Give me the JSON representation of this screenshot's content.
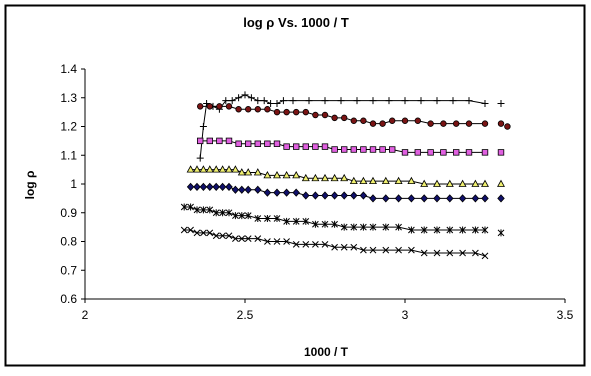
{
  "chart_data": {
    "type": "scatter",
    "title": "log ρ  Vs. 1000 / T",
    "xlabel": "1000 / T",
    "ylabel": "log ρ",
    "xlim": [
      2,
      3.5
    ],
    "ylim": [
      0.6,
      1.4
    ],
    "xticks": [
      "2",
      "2.5",
      "3",
      "3.5"
    ],
    "yticks": [
      "0.6",
      "0.7",
      "0.8",
      "0.9",
      "1",
      "1.1",
      "1.2",
      "1.3",
      "1.4"
    ],
    "grid": false,
    "legend": "none",
    "series": [
      {
        "marker": "plus",
        "color": "#000000",
        "fill": "none",
        "x": [
          2.36,
          2.37,
          2.38,
          2.4,
          2.42,
          2.44,
          2.46,
          2.48,
          2.5,
          2.52,
          2.54,
          2.56,
          2.58,
          2.6,
          2.62,
          2.65,
          2.7,
          2.75,
          2.8,
          2.85,
          2.9,
          2.95,
          3.0,
          3.05,
          3.1,
          3.15,
          3.2,
          3.25
        ],
        "y": [
          1.09,
          1.2,
          1.28,
          1.27,
          1.26,
          1.29,
          1.29,
          1.3,
          1.31,
          1.3,
          1.29,
          1.29,
          1.28,
          1.28,
          1.29,
          1.29,
          1.29,
          1.29,
          1.29,
          1.29,
          1.29,
          1.29,
          1.29,
          1.29,
          1.29,
          1.29,
          1.29,
          1.28
        ],
        "outlier": {
          "x": 3.3,
          "y": 1.28
        }
      },
      {
        "marker": "circle",
        "color": "#000000",
        "fill": "#7a1414",
        "x": [
          2.36,
          2.39,
          2.42,
          2.45,
          2.48,
          2.51,
          2.54,
          2.57,
          2.6,
          2.63,
          2.66,
          2.69,
          2.72,
          2.75,
          2.78,
          2.81,
          2.84,
          2.87,
          2.9,
          2.93,
          2.96,
          3.0,
          3.04,
          3.08,
          3.12,
          3.16,
          3.2,
          3.25
        ],
        "y": [
          1.27,
          1.27,
          1.27,
          1.27,
          1.26,
          1.26,
          1.26,
          1.26,
          1.25,
          1.25,
          1.25,
          1.25,
          1.24,
          1.24,
          1.23,
          1.23,
          1.22,
          1.22,
          1.21,
          1.21,
          1.22,
          1.22,
          1.22,
          1.21,
          1.21,
          1.21,
          1.21,
          1.21
        ],
        "outlier": {
          "x": 3.3,
          "y": 1.21
        },
        "extra": {
          "x": 3.32,
          "y": 1.2
        }
      },
      {
        "marker": "square",
        "color": "#000000",
        "fill": "#e060e0",
        "x": [
          2.36,
          2.39,
          2.42,
          2.45,
          2.48,
          2.51,
          2.54,
          2.57,
          2.6,
          2.63,
          2.66,
          2.69,
          2.72,
          2.75,
          2.78,
          2.81,
          2.84,
          2.87,
          2.9,
          2.93,
          2.96,
          3.0,
          3.04,
          3.08,
          3.12,
          3.16,
          3.2,
          3.25
        ],
        "y": [
          1.15,
          1.15,
          1.15,
          1.15,
          1.14,
          1.14,
          1.14,
          1.14,
          1.14,
          1.13,
          1.13,
          1.13,
          1.13,
          1.13,
          1.12,
          1.12,
          1.12,
          1.12,
          1.12,
          1.12,
          1.12,
          1.11,
          1.11,
          1.11,
          1.11,
          1.11,
          1.11,
          1.11
        ],
        "outlier": {
          "x": 3.3,
          "y": 1.11
        }
      },
      {
        "marker": "triangle",
        "color": "#000000",
        "fill": "#f0f070",
        "x": [
          2.33,
          2.35,
          2.37,
          2.39,
          2.41,
          2.43,
          2.45,
          2.47,
          2.49,
          2.51,
          2.54,
          2.57,
          2.6,
          2.63,
          2.66,
          2.69,
          2.72,
          2.75,
          2.78,
          2.81,
          2.84,
          2.87,
          2.9,
          2.94,
          2.98,
          3.02,
          3.06,
          3.1,
          3.14,
          3.18,
          3.22,
          3.25
        ],
        "y": [
          1.05,
          1.05,
          1.05,
          1.05,
          1.05,
          1.05,
          1.05,
          1.05,
          1.04,
          1.04,
          1.04,
          1.03,
          1.03,
          1.03,
          1.03,
          1.02,
          1.02,
          1.02,
          1.02,
          1.02,
          1.01,
          1.01,
          1.01,
          1.01,
          1.01,
          1.01,
          1.0,
          1.0,
          1.0,
          1.0,
          1.0,
          1.0
        ],
        "outlier": {
          "x": 3.3,
          "y": 1.0
        }
      },
      {
        "marker": "diamond",
        "color": "#000000",
        "fill": "#10106a",
        "x": [
          2.33,
          2.35,
          2.37,
          2.39,
          2.41,
          2.43,
          2.45,
          2.47,
          2.49,
          2.51,
          2.54,
          2.57,
          2.6,
          2.63,
          2.66,
          2.69,
          2.72,
          2.75,
          2.78,
          2.81,
          2.84,
          2.87,
          2.9,
          2.94,
          2.98,
          3.02,
          3.06,
          3.1,
          3.14,
          3.18,
          3.22,
          3.25
        ],
        "y": [
          0.99,
          0.99,
          0.99,
          0.99,
          0.99,
          0.99,
          0.99,
          0.98,
          0.98,
          0.98,
          0.98,
          0.97,
          0.97,
          0.97,
          0.97,
          0.96,
          0.96,
          0.96,
          0.96,
          0.96,
          0.96,
          0.96,
          0.95,
          0.95,
          0.95,
          0.95,
          0.95,
          0.95,
          0.95,
          0.95,
          0.95,
          0.95
        ],
        "outlier": {
          "x": 3.3,
          "y": 0.95
        }
      },
      {
        "marker": "x-star",
        "color": "#000000",
        "fill": "none",
        "x": [
          2.31,
          2.33,
          2.35,
          2.37,
          2.39,
          2.41,
          2.43,
          2.45,
          2.47,
          2.49,
          2.51,
          2.54,
          2.57,
          2.6,
          2.63,
          2.66,
          2.69,
          2.72,
          2.75,
          2.78,
          2.81,
          2.84,
          2.87,
          2.9,
          2.94,
          2.98,
          3.02,
          3.06,
          3.1,
          3.14,
          3.18,
          3.22,
          3.25
        ],
        "y": [
          0.92,
          0.92,
          0.91,
          0.91,
          0.91,
          0.9,
          0.9,
          0.9,
          0.89,
          0.89,
          0.89,
          0.88,
          0.88,
          0.88,
          0.87,
          0.87,
          0.87,
          0.86,
          0.86,
          0.86,
          0.85,
          0.85,
          0.85,
          0.85,
          0.85,
          0.85,
          0.84,
          0.84,
          0.84,
          0.84,
          0.84,
          0.84,
          0.84
        ],
        "outlier": {
          "x": 3.3,
          "y": 0.83
        }
      },
      {
        "marker": "x",
        "color": "#000000",
        "fill": "none",
        "x": [
          2.31,
          2.33,
          2.35,
          2.37,
          2.39,
          2.41,
          2.43,
          2.45,
          2.47,
          2.49,
          2.51,
          2.54,
          2.57,
          2.6,
          2.63,
          2.66,
          2.69,
          2.72,
          2.75,
          2.78,
          2.81,
          2.84,
          2.87,
          2.9,
          2.94,
          2.98,
          3.02,
          3.06,
          3.1,
          3.14,
          3.18,
          3.22,
          3.25
        ],
        "y": [
          0.84,
          0.84,
          0.83,
          0.83,
          0.83,
          0.82,
          0.82,
          0.82,
          0.81,
          0.81,
          0.81,
          0.81,
          0.8,
          0.8,
          0.8,
          0.79,
          0.79,
          0.79,
          0.79,
          0.78,
          0.78,
          0.78,
          0.77,
          0.77,
          0.77,
          0.77,
          0.77,
          0.76,
          0.76,
          0.76,
          0.76,
          0.76,
          0.75
        ]
      }
    ]
  }
}
